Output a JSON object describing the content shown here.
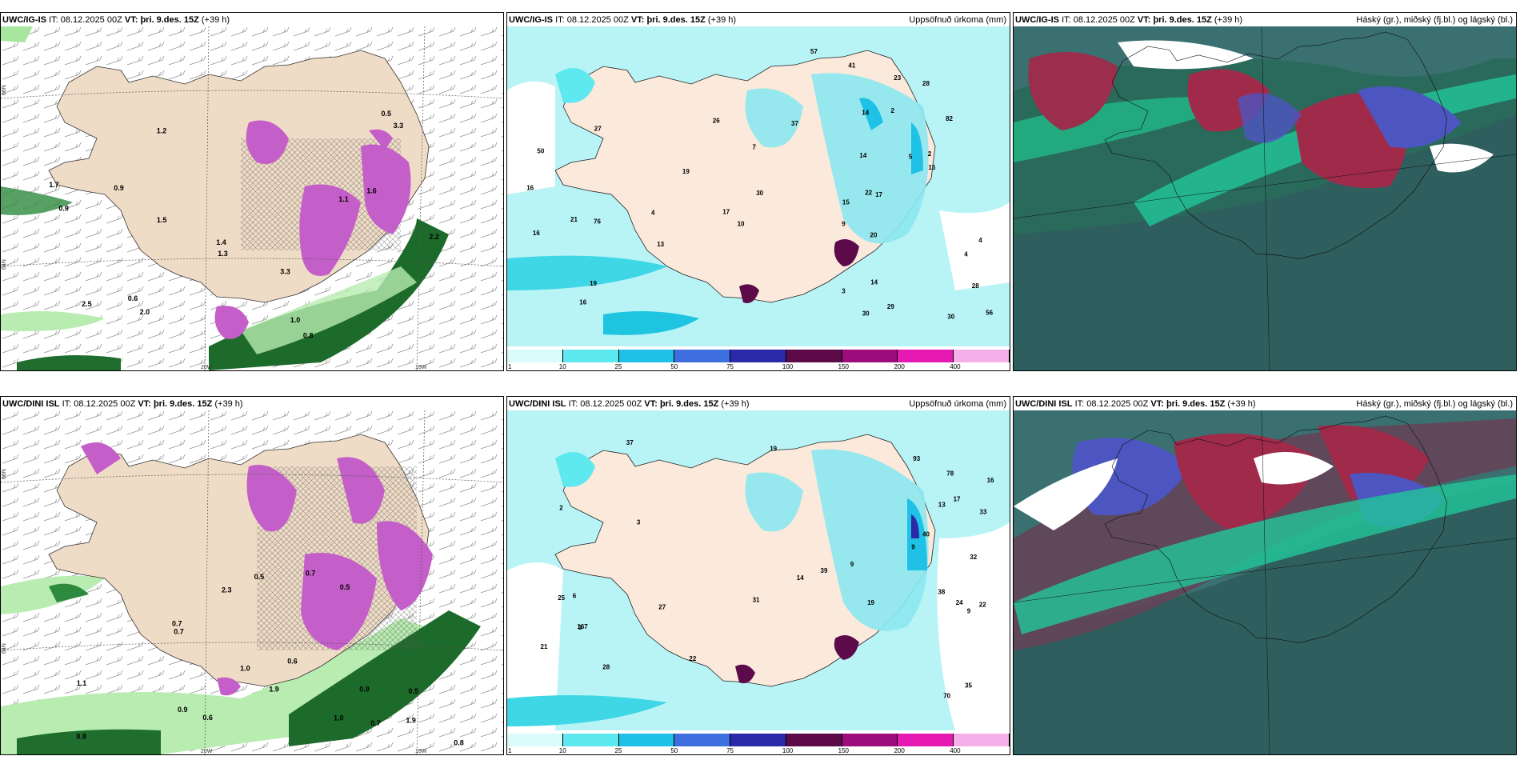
{
  "panels": {
    "p1": {
      "model": "UWC/IG-IS",
      "it_label": "IT:",
      "it_value": "08.12.2025 00Z",
      "vt_label": "VT:",
      "vt_value": "þri. 9.des. 15Z",
      "lead": "(+39 h)",
      "right_title": ""
    },
    "p2": {
      "model": "UWC/IG-IS",
      "it_label": "IT:",
      "it_value": "08.12.2025 00Z",
      "vt_label": "VT:",
      "vt_value": "þri. 9.des. 15Z",
      "lead": "(+39 h)",
      "right_title": "Uppsöfnuð úrkoma (mm)"
    },
    "p3": {
      "model": "UWC/IG-IS",
      "it_label": "IT:",
      "it_value": "08.12.2025 00Z",
      "vt_label": "VT:",
      "vt_value": "þri. 9.des. 15Z",
      "lead": "(+39 h)",
      "right_title": "Háský (gr.), miðský (fj.bl.) og lágský (bl.)"
    },
    "p4": {
      "model": "UWC/DINI ISL",
      "it_label": "IT:",
      "it_value": "08.12.2025 00Z",
      "vt_label": "VT:",
      "vt_value": "þri. 9.des. 15Z",
      "lead": "(+39 h)",
      "right_title": ""
    },
    "p5": {
      "model": "UWC/DINI ISL",
      "it_label": "IT:",
      "it_value": "08.12.2025 00Z",
      "vt_label": "VT:",
      "vt_value": "þri. 9.des. 15Z",
      "lead": "(+39 h)",
      "right_title": "Uppsöfnuð úrkoma (mm)"
    },
    "p6": {
      "model": "UWC/DINI ISL",
      "it_label": "IT:",
      "it_value": "08.12.2025 00Z",
      "vt_label": "VT:",
      "vt_value": "þri. 9.des. 15Z",
      "lead": "(+39 h)",
      "right_title": "Háský (gr.), miðský (fj.bl.) og lágský (bl.)"
    }
  },
  "gridlabels": {
    "lat66": "66N",
    "lat64": "64N",
    "lat63": "63N",
    "lon20": "20W",
    "lon15": "15W"
  },
  "colorbar": {
    "ticks": [
      "1",
      "10",
      "25",
      "50",
      "75",
      "100",
      "150",
      "200",
      "400"
    ],
    "colors": [
      "#d9fbfb",
      "#5ee8ef",
      "#1fc2e6",
      "#3e6fe0",
      "#2a2aa8",
      "#5c0a4a",
      "#9c0c7a",
      "#e61ab2",
      "#f4b0ea"
    ]
  },
  "snow_values_top": [
    "0.8",
    "1.2",
    "0.6",
    "0.9",
    "1.6",
    "1.0",
    "2.2",
    "1.5",
    "1.3",
    "2.0",
    "2.5",
    "1.7",
    "1.4",
    "3.3",
    "1.1",
    "0.5",
    "0.9",
    "3.3"
  ],
  "snow_values_bottom": [
    "0.8",
    "0.5",
    "0.6",
    "1.9",
    "2.3",
    "0.7",
    "1.9",
    "0.5",
    "0.7",
    "0.9",
    "0.8",
    "0.7",
    "0.6",
    "0.5",
    "1.0",
    "0.7",
    "0.9",
    "1.1",
    "1.0"
  ],
  "precip_values_top": [
    "9",
    "4",
    "5",
    "4",
    "3",
    "2",
    "2",
    "7",
    "28",
    "29",
    "22",
    "15",
    "16",
    "20",
    "13",
    "30",
    "28",
    "21",
    "23",
    "26",
    "10",
    "16",
    "14",
    "41",
    "15",
    "19",
    "27",
    "14",
    "56",
    "76",
    "82",
    "57",
    "50",
    "14",
    "19",
    "16",
    "37",
    "30",
    "17",
    "30",
    "17",
    "4"
  ],
  "precip_values_bottom": [
    "3",
    "3",
    "2",
    "22",
    "24",
    "32",
    "70",
    "27",
    "28",
    "37",
    "19",
    "21",
    "39",
    "33",
    "38",
    "31",
    "22",
    "25",
    "167",
    "40",
    "78",
    "93",
    "35",
    "19",
    "16",
    "14",
    "13",
    "17",
    "6",
    "9",
    "9",
    "9"
  ]
}
